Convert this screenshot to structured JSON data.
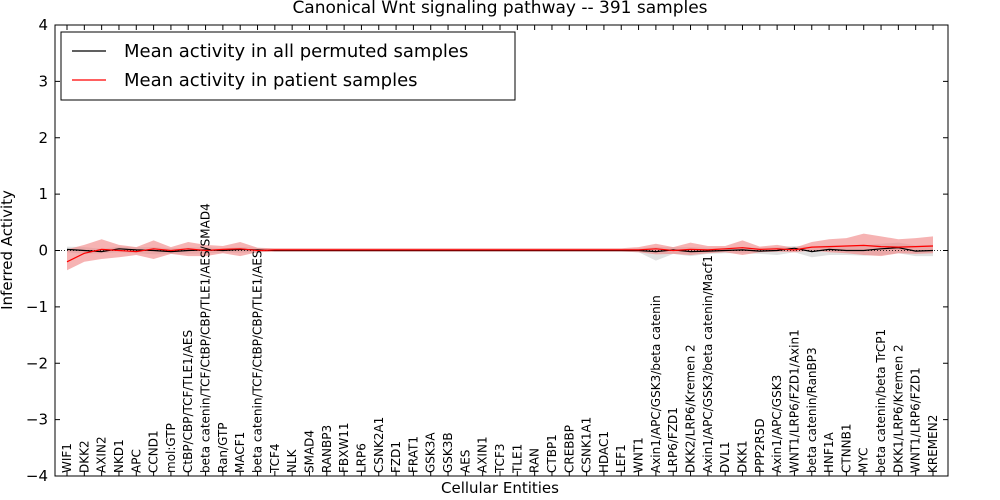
{
  "chart_data": {
    "type": "line",
    "title": "Canonical Wnt signaling pathway -- 391 samples",
    "xlabel": "Cellular Entities",
    "ylabel": "Inferred Activity",
    "ylim": [
      -4,
      4
    ],
    "yticks": [
      -4,
      -3,
      -2,
      -1,
      0,
      1,
      2,
      3,
      4
    ],
    "ytick_labels": [
      "−4",
      "−3",
      "−2",
      "−1",
      "0",
      "1",
      "2",
      "3",
      "4"
    ],
    "legend": {
      "placement": "top-left"
    },
    "colors": {
      "permuted": "#000000",
      "patient": "#ff0000",
      "patient_band": "#f08080",
      "permuted_band": "#c8c8c8"
    },
    "categories": [
      "WIF1",
      "DKK2",
      "AXIN2",
      "NKD1",
      "APC",
      "CCND1",
      "mol:GTP",
      "CtBP/CBP/TCF/TLE1/AES",
      "beta catenin/TCF/CtBP/CBP/TLE1/AES/SMAD4",
      "Ran/GTP",
      "MACF1",
      "beta catenin/TCF/CtBP/CBP/TLE1/AES",
      "TCF4",
      "NLK",
      "SMAD4",
      "RANBP3",
      "FBXW11",
      "LRP6",
      "CSNK2A1",
      "FZD1",
      "FRAT1",
      "GSK3A",
      "GSK3B",
      "AES",
      "AXIN1",
      "TCF3",
      "TLE1",
      "RAN",
      "CTBP1",
      "CREBBP",
      "CSNK1A1",
      "HDAC1",
      "LEF1",
      "WNT1",
      "Axin1/APC/GSK3/beta catenin",
      "LRP6/FZD1",
      "DKK2/LRP6/Kremen 2",
      "Axin1/APC/GSK3/beta catenin/Macf1",
      "DVL1",
      "DKK1",
      "PPP2R5D",
      "Axin1/APC/GSK3",
      "WNT1/LRP6/FZD1/Axin1",
      "beta catenin/RanBP3",
      "HNF1A",
      "CTNNB1",
      "MYC",
      "beta catenin/beta TrCP1",
      "DKK1/LRP6/Kremen 2",
      "WNT1/LRP6/FZD1",
      "KREMEN2"
    ],
    "series": [
      {
        "name": "Mean activity in all permuted samples",
        "values": [
          0.02,
          0.0,
          -0.02,
          0.03,
          0.01,
          0.0,
          -0.02,
          0.0,
          0.01,
          0.0,
          0.02,
          0.01,
          0.0,
          0.0,
          0.0,
          0.0,
          0.0,
          0.0,
          0.0,
          0.0,
          0.0,
          0.0,
          0.0,
          0.0,
          0.0,
          0.0,
          0.0,
          0.0,
          0.0,
          0.0,
          0.0,
          0.0,
          0.0,
          0.0,
          -0.02,
          0.01,
          -0.02,
          -0.01,
          0.0,
          0.01,
          -0.01,
          0.0,
          0.04,
          -0.02,
          0.02,
          0.0,
          0.0,
          0.03,
          0.05,
          -0.01,
          0.0
        ],
        "lower": [
          -0.03,
          -0.06,
          -0.05,
          -0.03,
          -0.05,
          -0.07,
          -0.06,
          -0.06,
          -0.05,
          -0.04,
          -0.04,
          -0.03,
          -0.02,
          -0.02,
          -0.02,
          -0.02,
          -0.02,
          -0.02,
          -0.02,
          -0.02,
          -0.02,
          -0.02,
          -0.02,
          -0.02,
          -0.02,
          -0.02,
          -0.02,
          -0.02,
          -0.02,
          -0.02,
          -0.02,
          -0.02,
          -0.02,
          -0.03,
          -0.18,
          -0.06,
          -0.1,
          -0.06,
          -0.05,
          -0.05,
          -0.06,
          -0.08,
          -0.03,
          -0.12,
          -0.08,
          -0.08,
          -0.09,
          -0.08,
          -0.05,
          -0.1,
          -0.1
        ],
        "upper": [
          0.07,
          0.06,
          0.03,
          0.07,
          0.06,
          0.06,
          0.04,
          0.05,
          0.06,
          0.04,
          0.06,
          0.05,
          0.03,
          0.03,
          0.03,
          0.03,
          0.03,
          0.03,
          0.03,
          0.03,
          0.03,
          0.03,
          0.03,
          0.03,
          0.03,
          0.03,
          0.03,
          0.03,
          0.03,
          0.03,
          0.03,
          0.03,
          0.03,
          0.04,
          0.06,
          0.06,
          0.06,
          0.05,
          0.05,
          0.06,
          0.05,
          0.06,
          0.08,
          0.07,
          0.09,
          0.08,
          0.09,
          0.12,
          0.14,
          0.09,
          0.1
        ]
      },
      {
        "name": "Mean activity in patient samples",
        "values": [
          -0.2,
          -0.05,
          0.02,
          0.0,
          -0.02,
          0.03,
          0.0,
          0.03,
          0.0,
          0.02,
          0.03,
          0.0,
          0.01,
          0.01,
          0.01,
          0.01,
          0.01,
          0.01,
          0.01,
          0.01,
          0.01,
          0.01,
          0.01,
          0.01,
          0.01,
          0.01,
          0.01,
          0.01,
          0.01,
          0.01,
          0.01,
          0.01,
          0.01,
          0.01,
          0.03,
          0.0,
          0.02,
          0.01,
          0.03,
          0.05,
          0.02,
          0.03,
          0.01,
          0.06,
          0.07,
          0.08,
          0.09,
          0.07,
          0.06,
          0.07,
          0.08
        ],
        "lower": [
          -0.35,
          -0.2,
          -0.15,
          -0.12,
          -0.08,
          -0.15,
          -0.06,
          -0.1,
          -0.1,
          -0.05,
          -0.1,
          -0.03,
          -0.02,
          -0.02,
          -0.02,
          -0.02,
          -0.02,
          -0.02,
          -0.02,
          -0.02,
          -0.02,
          -0.02,
          -0.02,
          -0.02,
          -0.02,
          -0.02,
          -0.02,
          -0.02,
          -0.02,
          -0.02,
          -0.02,
          -0.02,
          -0.02,
          -0.03,
          -0.07,
          -0.06,
          -0.08,
          -0.05,
          -0.03,
          -0.08,
          -0.03,
          -0.02,
          -0.03,
          0.0,
          -0.03,
          -0.05,
          -0.08,
          -0.1,
          -0.05,
          -0.06,
          -0.05
        ],
        "upper": [
          0.02,
          0.1,
          0.2,
          0.1,
          0.06,
          0.18,
          0.06,
          0.15,
          0.1,
          0.08,
          0.15,
          0.05,
          0.04,
          0.04,
          0.04,
          0.04,
          0.04,
          0.04,
          0.04,
          0.04,
          0.04,
          0.04,
          0.04,
          0.04,
          0.04,
          0.04,
          0.04,
          0.04,
          0.04,
          0.04,
          0.04,
          0.04,
          0.04,
          0.06,
          0.12,
          0.06,
          0.14,
          0.08,
          0.08,
          0.18,
          0.07,
          0.1,
          0.05,
          0.15,
          0.2,
          0.22,
          0.3,
          0.25,
          0.2,
          0.22,
          0.25
        ]
      }
    ]
  }
}
